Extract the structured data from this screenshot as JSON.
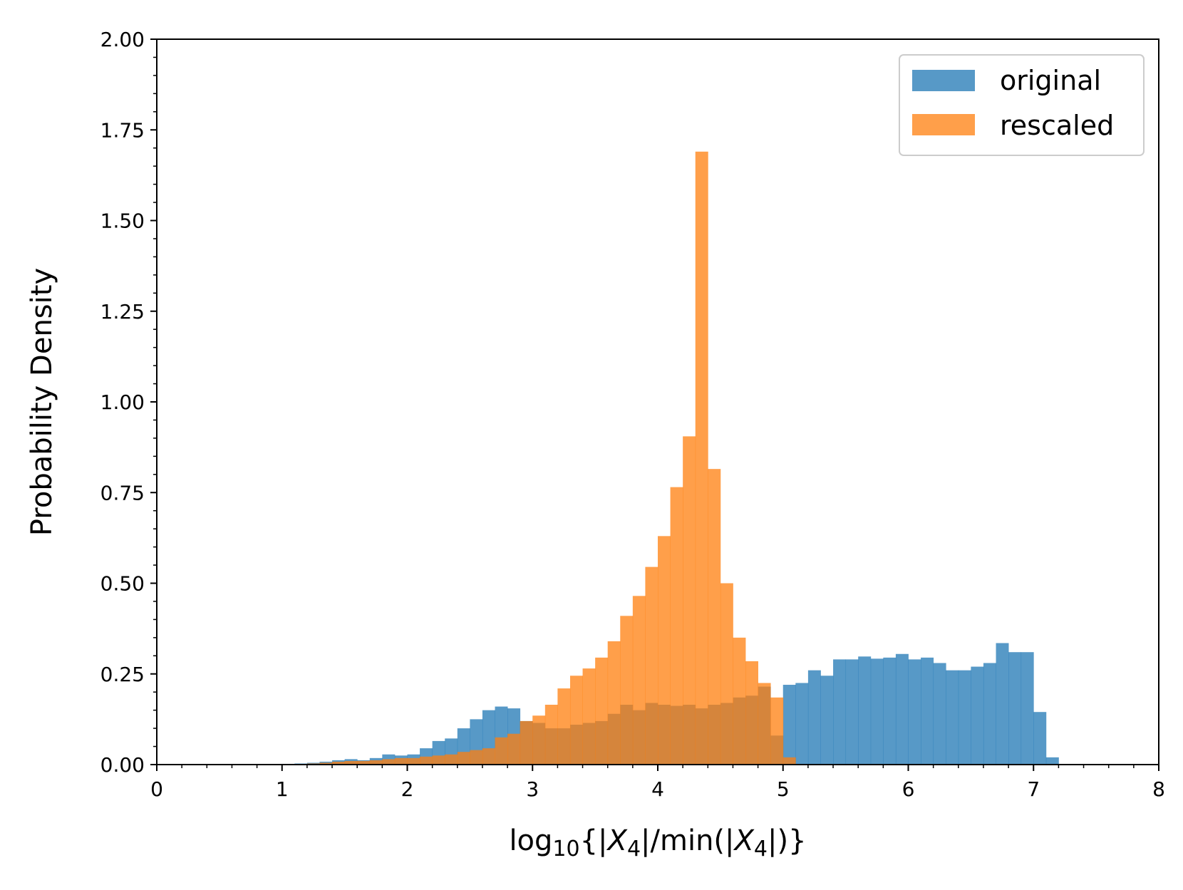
{
  "chart_data": {
    "type": "bar",
    "subtype": "histogram",
    "title": "",
    "xlabel": "log10{|X4|/min(|X4|)}",
    "xlabel_parts": {
      "prefix": "log",
      "base": "10",
      "open": "{|",
      "var1": "X",
      "sub1": "4",
      "mid": "|/min(|",
      "var2": "X",
      "sub2": "4",
      "close": "|)}"
    },
    "ylabel": "Probability Density",
    "xlim": [
      0,
      8
    ],
    "ylim": [
      0,
      2.0
    ],
    "xticks": [
      "0",
      "1",
      "2",
      "3",
      "4",
      "5",
      "6",
      "7",
      "8"
    ],
    "yticks": [
      "0.00",
      "0.25",
      "0.50",
      "0.75",
      "1.00",
      "1.25",
      "1.50",
      "1.75",
      "2.00"
    ],
    "grid": false,
    "legend_position": "top-right",
    "series": [
      {
        "name": "original",
        "color": "#1f77b4",
        "opacity": 0.75,
        "bin_edges": [
          1.0,
          1.1,
          1.2,
          1.3,
          1.4,
          1.5,
          1.6,
          1.7,
          1.8,
          1.9,
          2.0,
          2.1,
          2.2,
          2.3,
          2.4,
          2.5,
          2.6,
          2.7,
          2.8,
          2.9,
          3.0,
          3.1,
          3.2,
          3.3,
          3.4,
          3.5,
          3.6,
          3.7,
          3.8,
          3.9,
          4.0,
          4.1,
          4.2,
          4.3,
          4.4,
          4.5,
          4.6,
          4.7,
          4.8,
          4.9,
          5.0,
          5.1,
          5.2,
          5.3,
          5.4,
          5.5,
          5.6,
          5.7,
          5.8,
          5.9,
          6.0,
          6.1,
          6.2,
          6.3,
          6.4,
          6.5,
          6.6,
          6.7,
          6.8,
          6.9,
          7.0,
          7.1,
          7.2
        ],
        "values": [
          0.002,
          0.003,
          0.005,
          0.008,
          0.012,
          0.015,
          0.012,
          0.018,
          0.028,
          0.025,
          0.028,
          0.045,
          0.065,
          0.072,
          0.1,
          0.125,
          0.15,
          0.16,
          0.155,
          0.12,
          0.115,
          0.1,
          0.1,
          0.11,
          0.115,
          0.12,
          0.14,
          0.165,
          0.15,
          0.17,
          0.165,
          0.162,
          0.165,
          0.155,
          0.165,
          0.17,
          0.185,
          0.19,
          0.215,
          0.08,
          0.22,
          0.225,
          0.26,
          0.245,
          0.29,
          0.29,
          0.298,
          0.292,
          0.295,
          0.305,
          0.29,
          0.295,
          0.28,
          0.26,
          0.26,
          0.27,
          0.28,
          0.335,
          0.31,
          0.31,
          0.145,
          0.02
        ]
      },
      {
        "name": "rescaled",
        "color": "#ff7f0e",
        "opacity": 0.75,
        "bin_edges": [
          1.2,
          1.3,
          1.4,
          1.5,
          1.6,
          1.7,
          1.8,
          1.9,
          2.0,
          2.1,
          2.2,
          2.3,
          2.4,
          2.5,
          2.6,
          2.7,
          2.8,
          2.9,
          3.0,
          3.1,
          3.2,
          3.3,
          3.4,
          3.5,
          3.6,
          3.7,
          3.8,
          3.9,
          4.0,
          4.1,
          4.2,
          4.3,
          4.4,
          4.5,
          4.6,
          4.7,
          4.8,
          4.9,
          5.0,
          5.1
        ],
        "values": [
          0.003,
          0.005,
          0.008,
          0.01,
          0.01,
          0.012,
          0.015,
          0.018,
          0.018,
          0.022,
          0.025,
          0.028,
          0.035,
          0.04,
          0.045,
          0.075,
          0.085,
          0.12,
          0.135,
          0.165,
          0.21,
          0.245,
          0.265,
          0.295,
          0.34,
          0.41,
          0.465,
          0.545,
          0.63,
          0.765,
          0.905,
          1.69,
          0.815,
          0.5,
          0.35,
          0.285,
          0.225,
          0.185,
          0.02
        ]
      }
    ]
  }
}
